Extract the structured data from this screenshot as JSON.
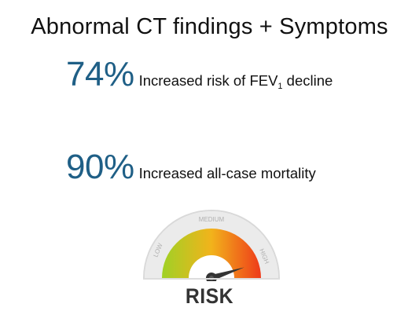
{
  "title": "Abnormal CT findings + Symptoms",
  "stats": [
    {
      "percent": "74%",
      "text_before_sub": "Increased risk of FEV",
      "subscript": "1",
      "text_after_sub": " decline"
    },
    {
      "percent": "90%",
      "text": "Increased all-case mortality"
    }
  ],
  "gauge": {
    "label": "RISK",
    "low_label": "LOW",
    "medium_label": "MEDIUM",
    "high_label": "HIGH",
    "level": 0.9,
    "colors": {
      "low": "#9fd126",
      "mid": "#f2b31b",
      "high": "#ee3a1a",
      "needle": "#333333",
      "rim": "#e6e6e6"
    }
  },
  "accent_color": "#1f5f86"
}
